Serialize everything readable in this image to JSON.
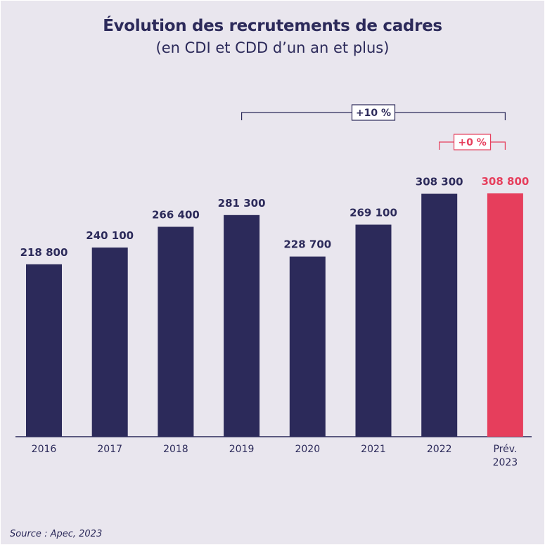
{
  "title": "Évolution des recrutements de cadres",
  "subtitle": "(en CDI et CDD d’un an et plus)",
  "source": "Source : Apec, 2023",
  "colors": {
    "bar": "#2c2a5a",
    "highlight": "#e63e5c",
    "background": "#e9e6ee",
    "text": "#2c2a5a"
  },
  "chart_data": {
    "type": "bar",
    "title": "Évolution des recrutements de cadres",
    "subtitle": "(en CDI et CDD d’un an et plus)",
    "categories": [
      "2016",
      "2017",
      "2018",
      "2019",
      "2020",
      "2021",
      "2022",
      "Prév. 2023"
    ],
    "values": [
      218800,
      240100,
      266400,
      281300,
      228700,
      269100,
      308300,
      308800
    ],
    "value_labels": [
      "218 800",
      "240 100",
      "266 400",
      "281 300",
      "228 700",
      "269 100",
      "308 300",
      "308 800"
    ],
    "highlight_index": 7,
    "ylim": [
      0,
      320000
    ],
    "grid": false,
    "annotations": [
      {
        "label": "+10 %",
        "from": "2019",
        "to": "Prév. 2023",
        "color": "#2c2a5a"
      },
      {
        "label": "+0 %",
        "from": "2022",
        "to": "Prév. 2023",
        "color": "#e63e5c"
      }
    ]
  }
}
